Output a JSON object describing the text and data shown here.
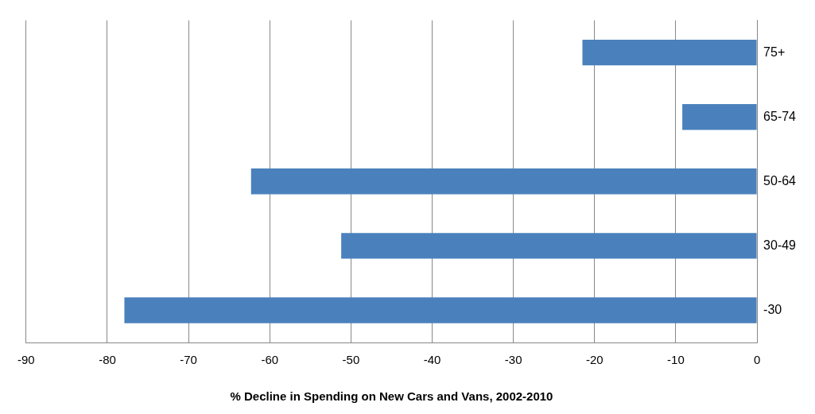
{
  "chart_data": {
    "type": "bar",
    "orientation": "horizontal",
    "xlabel": "% Decline in Spending on New Cars and Vans, 2002-2010",
    "categories": [
      "75+",
      "65-74",
      "50-64",
      "30-49",
      "-30"
    ],
    "values": [
      -21.5,
      -9.2,
      -62.3,
      -51.2,
      -77.9
    ],
    "color": "#4a81bd",
    "xlim": [
      -90,
      0
    ],
    "xticks": [
      -90,
      -80,
      -70,
      -60,
      -50,
      -40,
      -30,
      -20,
      -10,
      0
    ],
    "grid": "x"
  }
}
